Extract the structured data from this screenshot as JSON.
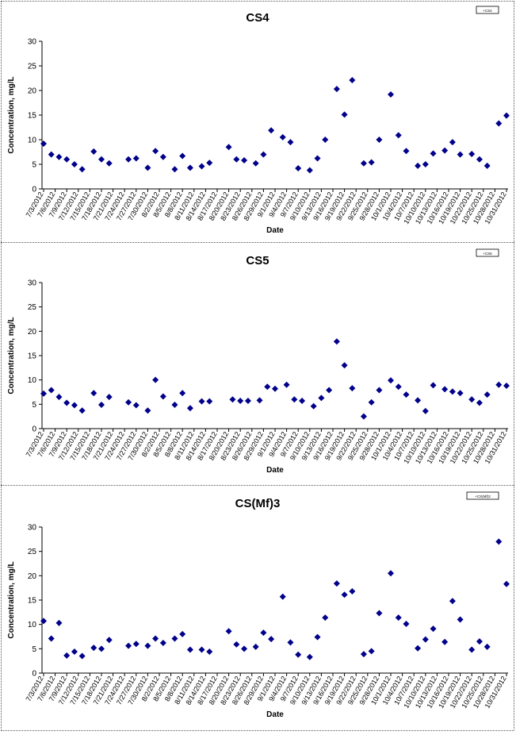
{
  "chart_data": [
    {
      "type": "scatter",
      "title": "CS4",
      "xlabel": "Date",
      "ylabel": "Concentration, mg/L",
      "ylim": [
        0,
        30
      ],
      "yticks": [
        0,
        5,
        10,
        15,
        20,
        25,
        30
      ],
      "grid": false,
      "legend_position": "top-right",
      "legend_label": "+CS4",
      "marker_color": "#00008B",
      "xtick_labels": [
        "7/3/2012",
        "7/6/2012",
        "7/9/2012",
        "7/12/2012",
        "7/15/2012",
        "7/18/2012",
        "7/21/2012",
        "7/24/2012",
        "7/27/2012",
        "7/30/2012",
        "8/2/2012",
        "8/5/2012",
        "8/8/2012",
        "8/11/2012",
        "8/14/2012",
        "8/17/2012",
        "8/20/2012",
        "8/23/2012",
        "8/26/2012",
        "8/29/2012",
        "9/1/2012",
        "9/4/2012",
        "9/7/2012",
        "9/10/2012",
        "9/13/2012",
        "9/16/2012",
        "9/19/2012",
        "9/22/2012",
        "9/25/2012",
        "9/28/2012",
        "10/1/2012",
        "10/4/2012",
        "10/7/2012",
        "10/10/2012",
        "10/13/2012",
        "10/16/2012",
        "10/19/2012",
        "10/22/2012",
        "10/25/2012",
        "10/28/2012",
        "10/31/2012"
      ],
      "points": [
        [
          "7/3/2012",
          9.2
        ],
        [
          "7/5/2012",
          7.0
        ],
        [
          "7/7/2012",
          6.5
        ],
        [
          "7/9/2012",
          6.0
        ],
        [
          "7/11/2012",
          5.0
        ],
        [
          "7/13/2012",
          4.0
        ],
        [
          "7/16/2012",
          7.6
        ],
        [
          "7/18/2012",
          6.0
        ],
        [
          "7/20/2012",
          5.2
        ],
        [
          "7/25/2012",
          6.0
        ],
        [
          "7/27/2012",
          6.2
        ],
        [
          "7/30/2012",
          4.3
        ],
        [
          "8/1/2012",
          7.7
        ],
        [
          "8/3/2012",
          6.5
        ],
        [
          "8/6/2012",
          4.0
        ],
        [
          "8/8/2012",
          6.7
        ],
        [
          "8/10/2012",
          4.3
        ],
        [
          "8/13/2012",
          4.6
        ],
        [
          "8/15/2012",
          5.3
        ],
        [
          "8/20/2012",
          8.5
        ],
        [
          "8/22/2012",
          6.0
        ],
        [
          "8/24/2012",
          5.8
        ],
        [
          "8/27/2012",
          5.2
        ],
        [
          "8/29/2012",
          7.0
        ],
        [
          "8/31/2012",
          11.9
        ],
        [
          "9/3/2012",
          10.5
        ],
        [
          "9/5/2012",
          9.5
        ],
        [
          "9/7/2012",
          4.2
        ],
        [
          "9/10/2012",
          3.8
        ],
        [
          "9/12/2012",
          6.2
        ],
        [
          "9/14/2012",
          10.0
        ],
        [
          "9/17/2012",
          20.3
        ],
        [
          "9/19/2012",
          15.1
        ],
        [
          "9/21/2012",
          22.1
        ],
        [
          "9/24/2012",
          5.2
        ],
        [
          "9/26/2012",
          5.4
        ],
        [
          "9/28/2012",
          10.0
        ],
        [
          "10/1/2012",
          19.2
        ],
        [
          "10/3/2012",
          10.9
        ],
        [
          "10/5/2012",
          7.7
        ],
        [
          "10/8/2012",
          4.7
        ],
        [
          "10/10/2012",
          5.0
        ],
        [
          "10/12/2012",
          7.2
        ],
        [
          "10/15/2012",
          7.8
        ],
        [
          "10/17/2012",
          9.5
        ],
        [
          "10/19/2012",
          7.0
        ],
        [
          "10/22/2012",
          7.1
        ],
        [
          "10/24/2012",
          6.0
        ],
        [
          "10/26/2012",
          4.7
        ],
        [
          "10/29/2012",
          13.3
        ],
        [
          "10/31/2012",
          14.9
        ]
      ]
    },
    {
      "type": "scatter",
      "title": "CS5",
      "xlabel": "Date",
      "ylabel": "Concentration, mg/L",
      "ylim": [
        0,
        30
      ],
      "yticks": [
        0,
        5,
        10,
        15,
        20,
        25,
        30
      ],
      "grid": false,
      "legend_position": "top-right",
      "legend_label": "+CS5",
      "marker_color": "#00008B",
      "xtick_labels": [
        "7/3/2012",
        "7/6/2012",
        "7/9/2012",
        "7/12/2012",
        "7/15/2012",
        "7/18/2012",
        "7/21/2012",
        "7/24/2012",
        "7/27/2012",
        "7/30/2012",
        "8/2/2012",
        "8/5/2012",
        "8/8/2012",
        "8/11/2012",
        "8/14/2012",
        "8/17/2012",
        "8/20/2012",
        "8/23/2012",
        "8/26/2012",
        "8/29/2012",
        "9/1/2012",
        "9/4/2012",
        "9/7/2012",
        "9/10/2012",
        "9/13/2012",
        "9/16/2012",
        "9/19/2012",
        "9/22/2012",
        "9/25/2012",
        "9/28/2012",
        "10/1/2012",
        "10/4/2012",
        "10/7/2012",
        "10/10/2012",
        "10/13/2012",
        "10/16/2012",
        "10/19/2012",
        "10/22/2012",
        "10/25/2012",
        "10/28/2012",
        "10/31/2012"
      ],
      "points": [
        [
          "7/3/2012",
          7.2
        ],
        [
          "7/5/2012",
          7.9
        ],
        [
          "7/7/2012",
          6.5
        ],
        [
          "7/9/2012",
          5.3
        ],
        [
          "7/11/2012",
          4.8
        ],
        [
          "7/13/2012",
          3.7
        ],
        [
          "7/16/2012",
          7.3
        ],
        [
          "7/18/2012",
          4.9
        ],
        [
          "7/20/2012",
          6.5
        ],
        [
          "7/25/2012",
          5.4
        ],
        [
          "7/27/2012",
          4.8
        ],
        [
          "7/30/2012",
          3.7
        ],
        [
          "8/1/2012",
          10.0
        ],
        [
          "8/3/2012",
          6.6
        ],
        [
          "8/6/2012",
          4.9
        ],
        [
          "8/8/2012",
          7.3
        ],
        [
          "8/10/2012",
          4.2
        ],
        [
          "8/13/2012",
          5.6
        ],
        [
          "8/15/2012",
          5.6
        ],
        [
          "8/21/2012",
          6.0
        ],
        [
          "8/23/2012",
          5.7
        ],
        [
          "8/25/2012",
          5.7
        ],
        [
          "8/28/2012",
          5.8
        ],
        [
          "8/30/2012",
          8.6
        ],
        [
          "9/1/2012",
          8.2
        ],
        [
          "9/4/2012",
          9.0
        ],
        [
          "9/6/2012",
          6.0
        ],
        [
          "9/8/2012",
          5.7
        ],
        [
          "9/11/2012",
          4.6
        ],
        [
          "9/13/2012",
          6.3
        ],
        [
          "9/15/2012",
          7.9
        ],
        [
          "9/17/2012",
          17.9
        ],
        [
          "9/19/2012",
          13.0
        ],
        [
          "9/21/2012",
          8.3
        ],
        [
          "9/24/2012",
          2.5
        ],
        [
          "9/26/2012",
          5.4
        ],
        [
          "9/28/2012",
          7.9
        ],
        [
          "10/1/2012",
          9.9
        ],
        [
          "10/3/2012",
          8.6
        ],
        [
          "10/5/2012",
          7.0
        ],
        [
          "10/8/2012",
          5.8
        ],
        [
          "10/10/2012",
          3.6
        ],
        [
          "10/12/2012",
          8.9
        ],
        [
          "10/15/2012",
          8.1
        ],
        [
          "10/17/2012",
          7.6
        ],
        [
          "10/19/2012",
          7.3
        ],
        [
          "10/22/2012",
          6.0
        ],
        [
          "10/24/2012",
          5.3
        ],
        [
          "10/26/2012",
          7.0
        ],
        [
          "10/29/2012",
          9.0
        ],
        [
          "10/31/2012",
          8.8
        ]
      ]
    },
    {
      "type": "scatter",
      "title": "CS(Mf)3",
      "xlabel": "Date",
      "ylabel": "Concentration, mg/L",
      "ylim": [
        0,
        30
      ],
      "yticks": [
        0,
        5,
        10,
        15,
        20,
        25,
        30
      ],
      "grid": false,
      "legend_position": "top-right",
      "legend_label": "+CS(Mf)3",
      "marker_color": "#00008B",
      "xtick_labels": [
        "7/3/2012",
        "7/6/2012",
        "7/9/2012",
        "7/12/2012",
        "7/15/2012",
        "7/18/2012",
        "7/21/2012",
        "7/24/2012",
        "7/27/2012",
        "7/30/2012",
        "8/2/2012",
        "8/5/2012",
        "8/8/2012",
        "8/11/2012",
        "8/14/2012",
        "8/17/2012",
        "8/20/2012",
        "8/23/2012",
        "8/26/2012",
        "8/29/2012",
        "9/1/2012",
        "9/4/2012",
        "9/7/2012",
        "9/10/2012",
        "9/13/2012",
        "9/16/2012",
        "9/19/2012",
        "9/22/2012",
        "9/25/2012",
        "9/28/2012",
        "10/1/2012",
        "10/4/2012",
        "10/7/2012",
        "10/10/2012",
        "10/13/2012",
        "10/16/2012",
        "10/19/2012",
        "10/22/2012",
        "10/25/2012",
        "10/28/2012",
        "10/31/2012"
      ],
      "points": [
        [
          "7/3/2012",
          10.7
        ],
        [
          "7/5/2012",
          7.1
        ],
        [
          "7/7/2012",
          10.3
        ],
        [
          "7/9/2012",
          3.6
        ],
        [
          "7/11/2012",
          4.4
        ],
        [
          "7/13/2012",
          3.5
        ],
        [
          "7/16/2012",
          5.2
        ],
        [
          "7/18/2012",
          5.0
        ],
        [
          "7/20/2012",
          6.8
        ],
        [
          "7/25/2012",
          5.6
        ],
        [
          "7/27/2012",
          6.0
        ],
        [
          "7/30/2012",
          5.6
        ],
        [
          "8/1/2012",
          7.1
        ],
        [
          "8/3/2012",
          6.2
        ],
        [
          "8/6/2012",
          7.1
        ],
        [
          "8/8/2012",
          8.0
        ],
        [
          "8/10/2012",
          4.8
        ],
        [
          "8/13/2012",
          4.8
        ],
        [
          "8/15/2012",
          4.4
        ],
        [
          "8/20/2012",
          8.6
        ],
        [
          "8/22/2012",
          5.9
        ],
        [
          "8/24/2012",
          5.0
        ],
        [
          "8/27/2012",
          5.4
        ],
        [
          "8/29/2012",
          8.3
        ],
        [
          "8/31/2012",
          7.0
        ],
        [
          "9/3/2012",
          15.7
        ],
        [
          "9/5/2012",
          6.3
        ],
        [
          "9/7/2012",
          3.8
        ],
        [
          "9/10/2012",
          3.3
        ],
        [
          "9/12/2012",
          7.4
        ],
        [
          "9/14/2012",
          11.4
        ],
        [
          "9/17/2012",
          18.4
        ],
        [
          "9/19/2012",
          16.1
        ],
        [
          "9/21/2012",
          16.8
        ],
        [
          "9/24/2012",
          3.9
        ],
        [
          "9/26/2012",
          4.5
        ],
        [
          "9/28/2012",
          12.3
        ],
        [
          "10/1/2012",
          20.5
        ],
        [
          "10/3/2012",
          11.4
        ],
        [
          "10/5/2012",
          10.1
        ],
        [
          "10/8/2012",
          5.1
        ],
        [
          "10/10/2012",
          6.9
        ],
        [
          "10/12/2012",
          9.1
        ],
        [
          "10/15/2012",
          6.4
        ],
        [
          "10/17/2012",
          14.8
        ],
        [
          "10/19/2012",
          11.0
        ],
        [
          "10/22/2012",
          4.8
        ],
        [
          "10/24/2012",
          6.5
        ],
        [
          "10/26/2012",
          5.4
        ],
        [
          "10/29/2012",
          27.0
        ],
        [
          "10/31/2012",
          18.3
        ]
      ]
    }
  ]
}
